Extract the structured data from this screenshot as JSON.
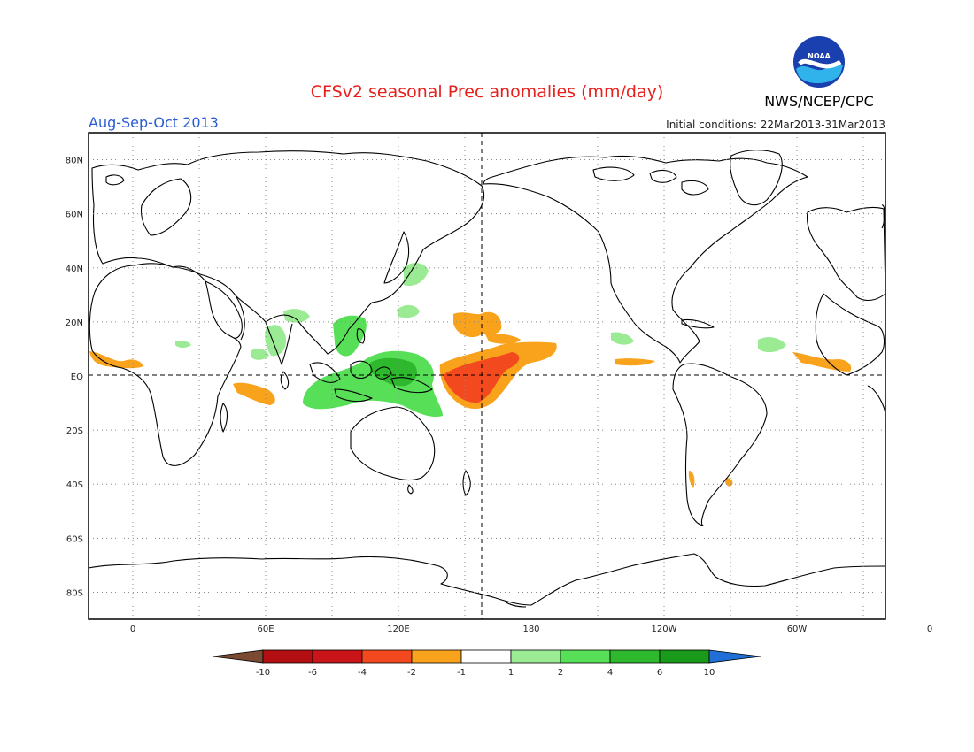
{
  "header": {
    "title": "CFSv2 seasonal Prec anomalies (mm/day)",
    "season": "Aug-Sep-Oct 2013",
    "init": "Initial conditions: 22Mar2013-31Mar2013",
    "agency": "NWS/NCEP/CPC",
    "logo_text": "NOAA"
  },
  "colors": {
    "title": "#e8201c",
    "season": "#2a5cd6"
  },
  "map": {
    "lon_range": [
      -20,
      340
    ],
    "lat_range": [
      -90,
      90
    ],
    "lat_labels": [
      "80N",
      "60N",
      "40N",
      "20N",
      "EQ",
      "20S",
      "40S",
      "60S",
      "80S"
    ],
    "lon_labels": [
      "0",
      "60E",
      "120E",
      "180",
      "120W",
      "60W",
      "0"
    ]
  },
  "legend": {
    "labels": [
      "-10",
      "-6",
      "-4",
      "-2",
      "-1",
      "1",
      "2",
      "4",
      "6",
      "10"
    ],
    "colors": [
      "#7a4a32",
      "#b30f12",
      "#c9151a",
      "#f24a1e",
      "#f9a21c",
      "#ffffff",
      "#9beb94",
      "#58df58",
      "#2eb82e",
      "#1a9a1a",
      "#1f6fd6"
    ]
  }
}
